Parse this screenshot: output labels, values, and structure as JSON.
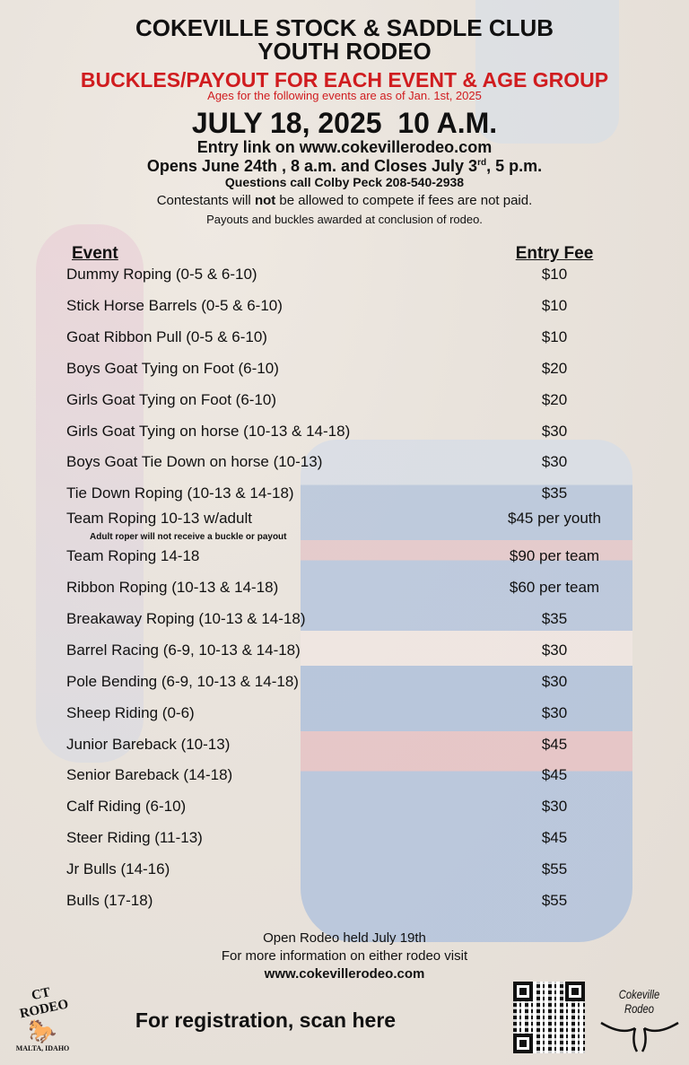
{
  "header": {
    "title_line1": "COKEVILLE STOCK & SADDLE CLUB",
    "title_line2": "YOUTH RODEO",
    "subtitle": "BUCKLES/PAYOUT FOR EACH EVENT & AGE GROUP",
    "ages_note": "Ages for the following events are as of Jan. 1st, 2025",
    "date": "JULY 18, 2025  10 A.M.",
    "entry_link": "Entry link on www.cokevillerodeo.com",
    "opens_a": "Opens June 24th , 8 a.m. and Closes July 3",
    "opens_sup": "rd",
    "opens_b": ", 5 p.m.",
    "questions": "Questions call Colby Peck 208-540-2938",
    "fees_a": "Contestants will ",
    "fees_bold": "not",
    "fees_b": " be allowed to compete if fees are not paid.",
    "payouts": "Payouts and buckles awarded at conclusion of rodeo."
  },
  "colors": {
    "accent_red": "#d01c1f",
    "text": "#111111"
  },
  "table": {
    "headers": [
      "Event",
      "Entry Fee"
    ],
    "rows": [
      {
        "event": "Dummy Roping (0-5 & 6-10)",
        "fee": "$10"
      },
      {
        "event": "Stick Horse Barrels (0-5 & 6-10)",
        "fee": "$10"
      },
      {
        "event": "Goat Ribbon Pull (0-5 & 6-10)",
        "fee": "$10"
      },
      {
        "event": "Boys Goat Tying on Foot (6-10)",
        "fee": "$20"
      },
      {
        "event": "Girls Goat Tying on Foot (6-10)",
        "fee": "$20"
      },
      {
        "event": "Girls Goat Tying on horse (10-13 & 14-18)",
        "fee": "$30"
      },
      {
        "event": "Boys Goat Tie Down on horse (10-13)",
        "fee": "$30"
      },
      {
        "event": "Tie Down Roping (10-13 & 14-18)",
        "fee": "$35"
      },
      {
        "event": "Team Roping 10-13 w/adult",
        "fee": "$45 per youth",
        "note": "Adult roper will not receive a buckle or payout"
      },
      {
        "event": "Team Roping 14-18",
        "fee": "$90 per team"
      },
      {
        "event": "Ribbon Roping (10-13 & 14-18)",
        "fee": "$60 per team"
      },
      {
        "event": "Breakaway Roping (10-13 & 14-18)",
        "fee": "$35"
      },
      {
        "event": "Barrel Racing (6-9, 10-13 & 14-18)",
        "fee": "$30"
      },
      {
        "event": "Pole Bending (6-9, 10-13 & 14-18)",
        "fee": "$30"
      },
      {
        "event": "Sheep Riding (0-6)",
        "fee": "$30"
      },
      {
        "event": "Junior Bareback (10-13)",
        "fee": "$45"
      },
      {
        "event": "Senior Bareback (14-18)",
        "fee": "$45"
      },
      {
        "event": "Calf Riding (6-10)",
        "fee": "$30"
      },
      {
        "event": "Steer Riding (11-13)",
        "fee": "$45"
      },
      {
        "event": "Jr Bulls (14-16)",
        "fee": "$55"
      },
      {
        "event": "Bulls (17-18)",
        "fee": "$55"
      }
    ]
  },
  "footer": {
    "open_rodeo": "Open Rodeo held July 19th",
    "more_info": "For more information on either rodeo visit",
    "website": "www.cokevillerodeo.com",
    "scan": "For registration, scan here",
    "logo_left_top": "CT RODEO",
    "logo_left_bottom": "MALTA, IDAHO",
    "logo_right": "Cokeville Rodeo"
  }
}
